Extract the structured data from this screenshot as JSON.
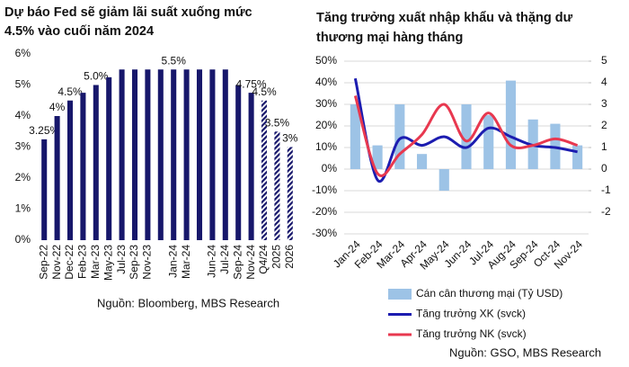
{
  "chart_data": [
    {
      "type": "bar",
      "title": [
        "Dự báo Fed sẽ giảm lãi suất xuống mức",
        "4.5% vào cuối năm 2024"
      ],
      "source": "Nguồn: Bloomberg, MBS Research",
      "categories": [
        "Sep-22",
        "Nov-22",
        "Dec-22",
        "Feb-23",
        "Mar-23",
        "May-23",
        "Jul-23",
        "Sep-23",
        "Nov-23",
        null,
        "Jan-24",
        "Mar-24",
        null,
        "Jun-24",
        "Jul-24",
        "Sep-24",
        "Nov-24",
        "Q4/24",
        "2025",
        "2026"
      ],
      "series": [
        {
          "color": "#17176b",
          "pattern": "solid",
          "values": [
            3.25,
            4,
            4.5,
            4.75,
            5,
            5.25,
            5.5,
            5.5,
            5.5,
            5.5,
            5.5,
            5.5,
            5.5,
            5.5,
            5.5,
            5,
            4.75,
            null,
            null,
            null
          ],
          "value_labels": [
            "3.25%",
            "4%",
            "4.5%",
            null,
            "5.0%",
            null,
            null,
            null,
            null,
            null,
            "5.5%",
            null,
            null,
            null,
            null,
            null,
            "4.75%",
            null,
            null,
            null
          ]
        },
        {
          "color": "#17176b",
          "pattern": "hatched",
          "values": [
            null,
            null,
            null,
            null,
            null,
            null,
            null,
            null,
            null,
            null,
            null,
            null,
            null,
            null,
            null,
            null,
            null,
            4.5,
            3.5,
            3
          ],
          "value_labels": [
            null,
            null,
            null,
            null,
            null,
            null,
            null,
            null,
            null,
            null,
            null,
            null,
            null,
            null,
            null,
            null,
            null,
            "4.5%",
            "3.5%",
            "3%"
          ]
        }
      ],
      "ylim": [
        0,
        6
      ],
      "yticks": [
        {
          "value": 0,
          "label": "0%"
        },
        {
          "value": 1,
          "label": "1%"
        },
        {
          "value": 2,
          "label": "2%"
        },
        {
          "value": 3,
          "label": "3%"
        },
        {
          "value": 4,
          "label": "4%"
        },
        {
          "value": 5,
          "label": "5%"
        },
        {
          "value": 6,
          "label": "6%"
        }
      ],
      "grid": false
    },
    {
      "type": "combo",
      "title": [
        "Tăng trưởng xuất nhập khẩu và thặng dư",
        "thương mại hàng tháng"
      ],
      "source": "Nguồn: GSO, MBS Research",
      "categories": [
        "Jan-24",
        "Feb-24",
        "Mar-24",
        "Apr-24",
        "May-24",
        "Jun-24",
        "Jul-24",
        "Aug-24",
        "Sep-24",
        "Oct-24",
        "Nov-24"
      ],
      "series": [
        {
          "name": "Cán cân thương mại (Tỷ USD)",
          "type": "bar",
          "axis": "y2",
          "color": "#9dc3e6",
          "values": [
            3.0,
            1.1,
            3.0,
            0.7,
            -1.0,
            3.0,
            2.5,
            4.1,
            2.3,
            2.1,
            1.1
          ]
        },
        {
          "name": "Tăng trưởng XK (svck)",
          "type": "line",
          "color": "#1c1cb0",
          "values": [
            42,
            -5,
            14,
            11,
            15,
            10,
            19,
            15,
            11,
            10,
            8
          ]
        },
        {
          "name": "Tăng trưởng NK (svck)",
          "type": "line",
          "color": "#e8384f",
          "values": [
            34,
            -2,
            7,
            16,
            30,
            13,
            26,
            11,
            11,
            14,
            11
          ]
        }
      ],
      "ylim": [
        -30,
        50
      ],
      "yticks": [
        {
          "value": 50,
          "label": "50%"
        },
        {
          "value": 40,
          "label": "40%"
        },
        {
          "value": 30,
          "label": "30%"
        },
        {
          "value": 20,
          "label": "20%"
        },
        {
          "value": 10,
          "label": "10%"
        },
        {
          "value": 0,
          "label": "0%"
        },
        {
          "value": -10,
          "label": "-10%"
        },
        {
          "value": -20,
          "label": "-20%"
        },
        {
          "value": -30,
          "label": "-30%"
        }
      ],
      "y2lim": [
        -3,
        5
      ],
      "y2ticks": [
        5,
        4,
        3,
        2,
        1,
        0,
        -1,
        -2
      ],
      "grid": true
    }
  ]
}
